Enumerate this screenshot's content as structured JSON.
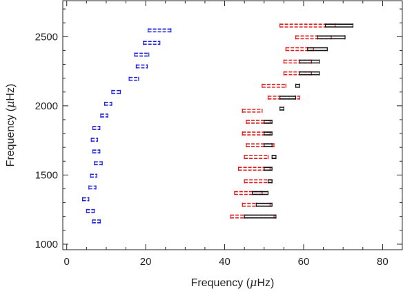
{
  "chart_data": {
    "type": "scatter",
    "title": "",
    "xlabel": {
      "pre": "Frequency (",
      "mu": "μ",
      "post": "Hz)"
    },
    "ylabel": {
      "pre": "Frequency (",
      "mu": "μ",
      "post": "Hz)"
    },
    "xlim": [
      -1,
      85
    ],
    "ylim": [
      960,
      2760
    ],
    "xticks": [
      0,
      20,
      40,
      60,
      80
    ],
    "yticks": [
      1000,
      1500,
      2000,
      2500
    ],
    "xtick_labels": [
      "0",
      "20",
      "40",
      "60",
      "80"
    ],
    "ytick_labels": [
      "1000",
      "1500",
      "2000",
      "2500"
    ],
    "grid": false,
    "legend": "none",
    "colors": {
      "blue": "#1f1fe0",
      "red": "#e01818",
      "black": "#111111"
    },
    "series": [
      {
        "color": "blue",
        "style": "error-segment",
        "points": [
          {
            "x": 7.5,
            "x_min": 6.5,
            "x_max": 8.5,
            "y": 1165
          },
          {
            "x": 6.0,
            "x_min": 5.0,
            "x_max": 7.0,
            "y": 1240
          },
          {
            "x": 4.8,
            "x_min": 4.0,
            "x_max": 5.6,
            "y": 1325
          },
          {
            "x": 6.5,
            "x_min": 5.6,
            "x_max": 7.4,
            "y": 1410
          },
          {
            "x": 6.8,
            "x_min": 6.0,
            "x_max": 7.6,
            "y": 1495
          },
          {
            "x": 8.0,
            "x_min": 7.0,
            "x_max": 9.0,
            "y": 1585
          },
          {
            "x": 7.5,
            "x_min": 6.6,
            "x_max": 8.4,
            "y": 1670
          },
          {
            "x": 7.0,
            "x_min": 6.2,
            "x_max": 7.8,
            "y": 1755
          },
          {
            "x": 7.5,
            "x_min": 6.6,
            "x_max": 8.4,
            "y": 1840
          },
          {
            "x": 9.5,
            "x_min": 8.6,
            "x_max": 10.4,
            "y": 1930
          },
          {
            "x": 10.5,
            "x_min": 9.6,
            "x_max": 11.4,
            "y": 2015
          },
          {
            "x": 12.5,
            "x_min": 11.4,
            "x_max": 13.6,
            "y": 2100
          },
          {
            "x": 17.0,
            "x_min": 15.8,
            "x_max": 18.2,
            "y": 2195
          },
          {
            "x": 19.0,
            "x_min": 17.6,
            "x_max": 20.4,
            "y": 2285
          },
          {
            "x": 19.0,
            "x_min": 17.2,
            "x_max": 20.8,
            "y": 2370
          },
          {
            "x": 21.5,
            "x_min": 19.4,
            "x_max": 23.6,
            "y": 2455
          },
          {
            "x": 23.5,
            "x_min": 20.6,
            "x_max": 26.4,
            "y": 2545
          }
        ]
      },
      {
        "color": "red",
        "style": "error-segment",
        "points": [
          {
            "x": 47.0,
            "x_min": 41.5,
            "x_max": 52.5,
            "y": 1200
          },
          {
            "x": 48.0,
            "x_min": 44.5,
            "x_max": 51.5,
            "y": 1285
          },
          {
            "x": 46.0,
            "x_min": 42.5,
            "x_max": 49.5,
            "y": 1370
          },
          {
            "x": 48.5,
            "x_min": 45.0,
            "x_max": 52.0,
            "y": 1455
          },
          {
            "x": 47.5,
            "x_min": 43.5,
            "x_max": 51.5,
            "y": 1545
          },
          {
            "x": 48.0,
            "x_min": 45.0,
            "x_max": 51.0,
            "y": 1630
          },
          {
            "x": 49.0,
            "x_min": 45.5,
            "x_max": 52.5,
            "y": 1715
          },
          {
            "x": 48.0,
            "x_min": 44.5,
            "x_max": 51.5,
            "y": 1800
          },
          {
            "x": 48.5,
            "x_min": 45.5,
            "x_max": 51.5,
            "y": 1885
          },
          {
            "x": 47.0,
            "x_min": 44.5,
            "x_max": 49.5,
            "y": 1965
          },
          {
            "x": 55.0,
            "x_min": 51.0,
            "x_max": 59.0,
            "y": 2060
          },
          {
            "x": 52.5,
            "x_min": 49.5,
            "x_max": 55.5,
            "y": 2145
          },
          {
            "x": 58.5,
            "x_min": 55.0,
            "x_max": 62.0,
            "y": 2235
          },
          {
            "x": 58.5,
            "x_min": 55.0,
            "x_max": 62.0,
            "y": 2320
          },
          {
            "x": 59.0,
            "x_min": 55.5,
            "x_max": 62.5,
            "y": 2410
          },
          {
            "x": 62.5,
            "x_min": 58.0,
            "x_max": 67.0,
            "y": 2495
          },
          {
            "x": 61.0,
            "x_min": 54.0,
            "x_max": 68.0,
            "y": 2580
          }
        ]
      },
      {
        "color": "black",
        "style": "error-segment",
        "points": [
          {
            "x": 48.5,
            "x_min": 45.0,
            "x_max": 53.0,
            "y": 1200
          },
          {
            "x": 50.0,
            "x_min": 48.0,
            "x_max": 52.0,
            "y": 1285
          },
          {
            "x": 49.0,
            "x_min": 47.0,
            "x_max": 51.0,
            "y": 1370
          },
          {
            "x": 51.5,
            "x_min": 51.0,
            "x_max": 52.0,
            "y": 1455
          },
          {
            "x": 51.0,
            "x_min": 50.0,
            "x_max": 52.0,
            "y": 1545
          },
          {
            "x": 52.5,
            "x_min": 52.0,
            "x_max": 53.0,
            "y": 1630
          },
          {
            "x": 51.0,
            "x_min": 50.0,
            "x_max": 52.0,
            "y": 1715
          },
          {
            "x": 51.0,
            "x_min": 50.0,
            "x_max": 52.0,
            "y": 1800
          },
          {
            "x": 51.0,
            "x_min": 50.0,
            "x_max": 52.0,
            "y": 1885
          },
          {
            "x": 54.5,
            "x_min": 54.0,
            "x_max": 55.0,
            "y": 1980
          },
          {
            "x": 56.0,
            "x_min": 54.0,
            "x_max": 58.0,
            "y": 2060
          },
          {
            "x": 58.5,
            "x_min": 58.0,
            "x_max": 59.0,
            "y": 2145
          },
          {
            "x": 61.5,
            "x_min": 59.0,
            "x_max": 64.0,
            "y": 2235
          },
          {
            "x": 61.5,
            "x_min": 59.0,
            "x_max": 64.0,
            "y": 2320
          },
          {
            "x": 63.5,
            "x_min": 61.0,
            "x_max": 66.0,
            "y": 2410
          },
          {
            "x": 67.0,
            "x_min": 63.5,
            "x_max": 70.5,
            "y": 2495
          },
          {
            "x": 69.0,
            "x_min": 65.5,
            "x_max": 72.5,
            "y": 2580
          }
        ]
      }
    ]
  }
}
